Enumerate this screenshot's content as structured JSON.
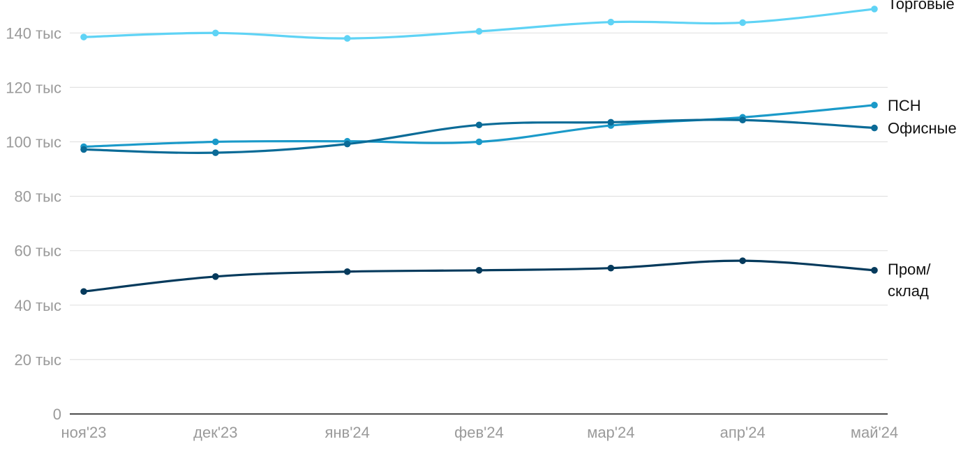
{
  "chart_data": {
    "type": "line",
    "x": [
      "ноя'23",
      "дек'23",
      "янв'24",
      "фев'24",
      "мар'24",
      "апр'24",
      "май'24"
    ],
    "y_ticks": [
      "0",
      "20 тыс",
      "40 тыс",
      "60 тыс",
      "80 тыс",
      "100 тыс",
      "120 тыс",
      "140 тыс"
    ],
    "ylim": [
      0,
      140000
    ],
    "grid": true,
    "series": [
      {
        "name": "Торговые",
        "label_lines": [
          "Торговые"
        ],
        "color": "#5fd3f5",
        "values": [
          138500,
          140000,
          138000,
          140600,
          144000,
          143800,
          148800
        ]
      },
      {
        "name": "ПСН",
        "label_lines": [
          "ПСН"
        ],
        "color": "#1b9ac9",
        "values": [
          98200,
          100000,
          100200,
          100000,
          106000,
          109000,
          113500
        ]
      },
      {
        "name": "Офисные",
        "label_lines": [
          "Офисные"
        ],
        "color": "#0b6b97",
        "values": [
          97200,
          96000,
          99200,
          106200,
          107200,
          108000,
          105100
        ]
      },
      {
        "name": "Пром/склад",
        "label_lines": [
          "Пром/",
          "склад"
        ],
        "color": "#053a5c",
        "values": [
          45000,
          50500,
          52300,
          52800,
          53600,
          56300,
          52800
        ]
      }
    ]
  }
}
